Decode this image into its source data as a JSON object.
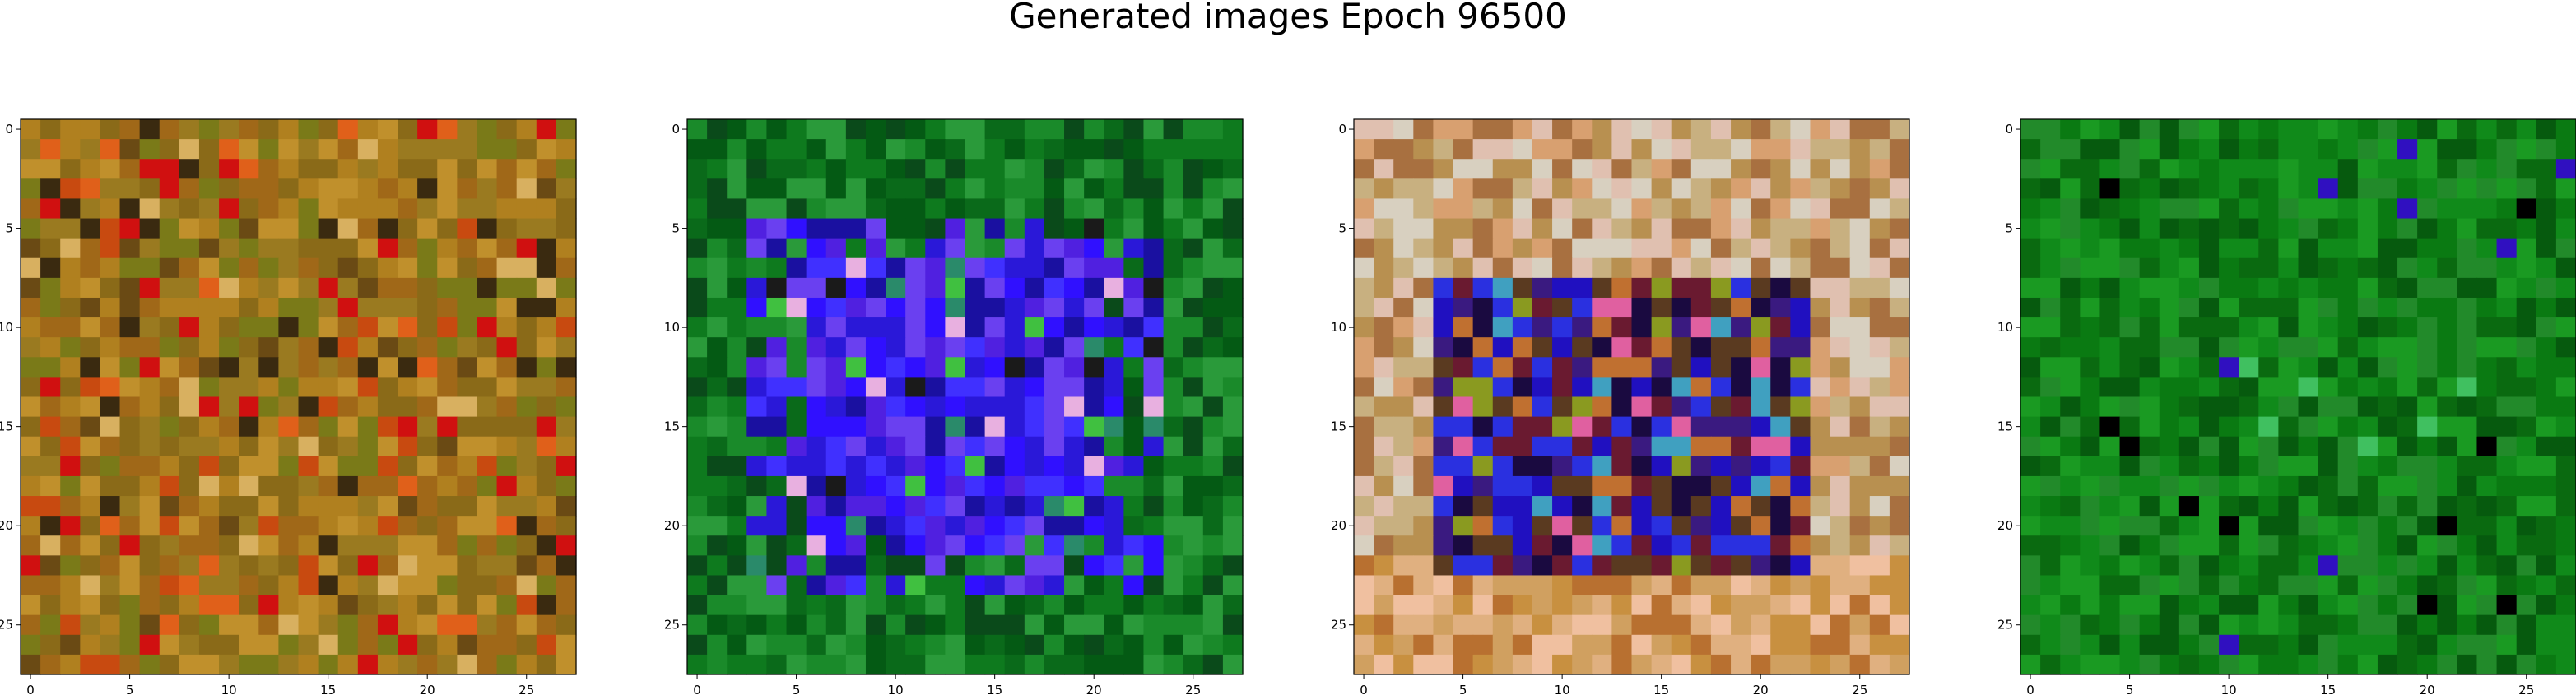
{
  "figure": {
    "title": "Generated images Epoch 96500"
  },
  "axes": {
    "x_ticks": [
      "0",
      "5",
      "10",
      "15",
      "20",
      "25"
    ],
    "y_ticks": [
      "0",
      "5",
      "10",
      "15",
      "20",
      "25"
    ],
    "image_size": 28
  },
  "panels": [
    {
      "description_colors": [
        "#c08a2a",
        "#a86a1e",
        "#7d6a14",
        "#d4a24a",
        "#8a3a10",
        "#b5561a"
      ],
      "palette": {
        "base": [
          "#9a7a20",
          "#b0801f",
          "#8a6a18",
          "#c0902c",
          "#a06818",
          "#7a7a18"
        ],
        "accent": [
          "#c84a10",
          "#d8b060",
          "#3a2a10",
          "#e0601a",
          "#6a4a14",
          "#d01010"
        ]
      }
    },
    {
      "palette": {
        "outer": [
          "#0a6a1a",
          "#0e7a1e",
          "#045a14",
          "#1a8a2a",
          "#0a4a1a",
          "#2a9a3a"
        ],
        "inner": [
          "#3010ff",
          "#2a18d8",
          "#5020e0",
          "#1a10a0",
          "#4030ff",
          "#6a40f0"
        ]
      }
    },
    {
      "palette": {
        "outer": [
          "#d8a070",
          "#c8b080",
          "#e0c0b0",
          "#b89050",
          "#a87040",
          "#d8d0c0"
        ],
        "inner": [
          "#2010c0",
          "#3a1a80",
          "#1a0a40",
          "#5a3a20",
          "#2a30e0",
          "#6a1a30"
        ]
      }
    },
    {
      "palette": {
        "base": [
          "#0a7a12",
          "#108a1a",
          "#0a6a10",
          "#1a9a22",
          "#065a0e",
          "#228a2a"
        ]
      }
    }
  ]
}
